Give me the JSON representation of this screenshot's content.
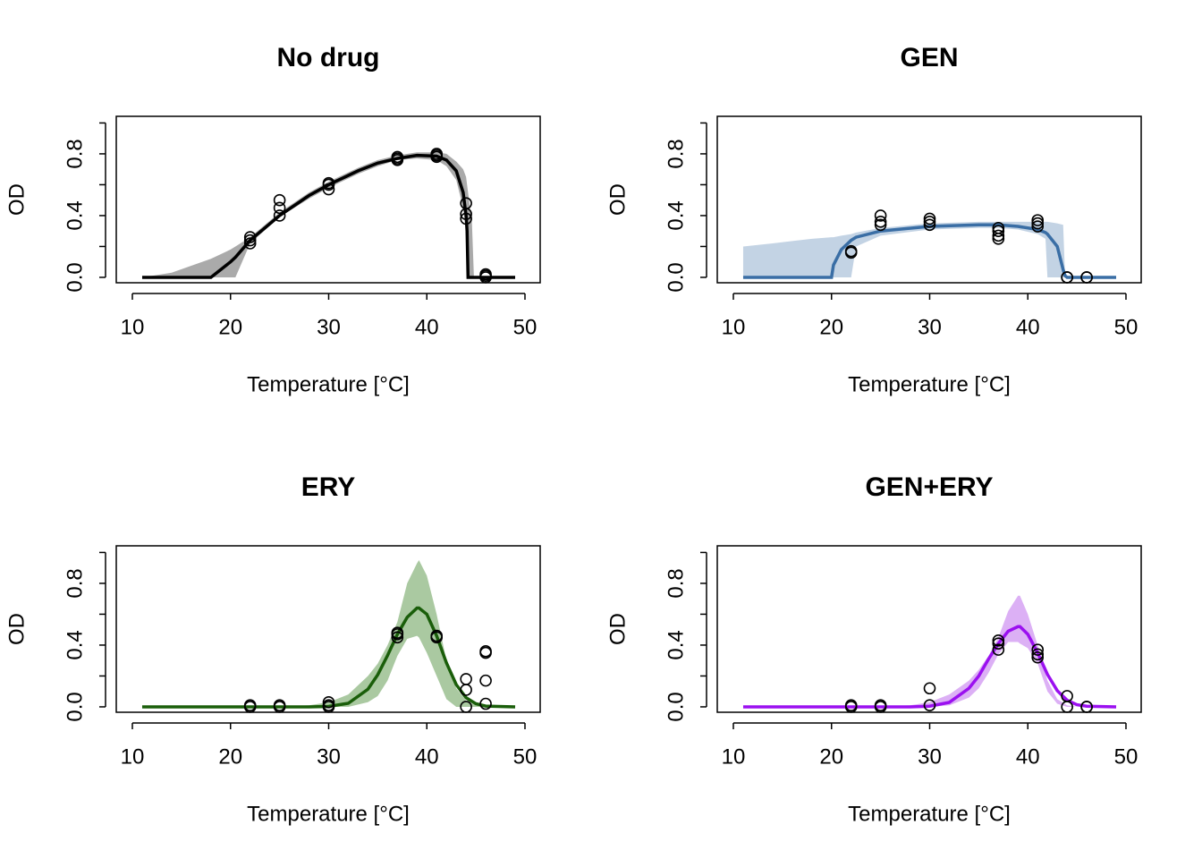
{
  "chart_data": [
    {
      "type": "line",
      "title": "No drug",
      "xlabel": "Temperature [°C]",
      "ylabel": "OD",
      "xlim": [
        8.36,
        51.55
      ],
      "ylim": [
        -0.035,
        1.043
      ],
      "xticks": [
        10,
        20,
        30,
        40,
        50
      ],
      "yticks": [
        {
          "value": 0,
          "label": "0.0"
        },
        {
          "value": 0.4,
          "label": "0.4"
        },
        {
          "value": 0.8,
          "label": "0.8"
        }
      ],
      "yticks_minor": [
        0.2,
        0.6,
        1.0
      ],
      "x": [
        11,
        14,
        18,
        20,
        20.5,
        22,
        25,
        28,
        30,
        33,
        35,
        37,
        39,
        41,
        42,
        43,
        43.7,
        44,
        44.1,
        44.2,
        44.6,
        44.8,
        49
      ],
      "fit": {
        "color": "#000000",
        "values": [
          0,
          0,
          0,
          0.1,
          0.13,
          0.24,
          0.4,
          0.53,
          0.6,
          0.69,
          0.74,
          0.77,
          0.79,
          0.785,
          0.76,
          0.69,
          0.55,
          0.4,
          0.3,
          0,
          0,
          0,
          0
        ]
      },
      "band": {
        "color": "#aaaaaa",
        "lower": [
          0,
          0,
          0,
          0,
          0,
          0.22,
          0.39,
          0.51,
          0.58,
          0.67,
          0.72,
          0.76,
          0.77,
          0.76,
          0.72,
          0.63,
          0.45,
          0.3,
          0.1,
          0,
          0,
          0,
          0
        ],
        "upper": [
          0,
          0.03,
          0.12,
          0.18,
          0.2,
          0.26,
          0.42,
          0.55,
          0.62,
          0.71,
          0.76,
          0.79,
          0.81,
          0.81,
          0.8,
          0.75,
          0.7,
          0.65,
          0.6,
          0.55,
          0.35,
          0,
          0
        ]
      },
      "points": {
        "x": [
          22,
          22,
          22,
          25,
          25,
          25,
          30,
          30,
          30,
          37,
          37,
          37,
          41,
          41,
          41,
          44,
          44,
          44,
          46,
          46,
          46
        ],
        "y": [
          0.22,
          0.24,
          0.26,
          0.4,
          0.45,
          0.5,
          0.57,
          0.6,
          0.61,
          0.76,
          0.77,
          0.78,
          0.78,
          0.79,
          0.8,
          0.38,
          0.41,
          0.48,
          0,
          0.01,
          0.02
        ]
      }
    },
    {
      "type": "line",
      "title": "GEN",
      "xlabel": "Temperature [°C]",
      "ylabel": "OD",
      "xlim": [
        8.36,
        51.55
      ],
      "ylim": [
        -0.035,
        1.043
      ],
      "xticks": [
        10,
        20,
        30,
        40,
        50
      ],
      "yticks": [
        {
          "value": 0,
          "label": "0.0"
        },
        {
          "value": 0.4,
          "label": "0.4"
        },
        {
          "value": 0.8,
          "label": "0.8"
        }
      ],
      "yticks_minor": [
        0.2,
        0.6,
        1.0
      ],
      "x": [
        11,
        14,
        18,
        20,
        20.2,
        21,
        22,
        22.5,
        25,
        30,
        35,
        37,
        39,
        41,
        41.8,
        42,
        43,
        43.6,
        43.8,
        44,
        49
      ],
      "fit": {
        "color": "#3a6ea5",
        "values": [
          0,
          0,
          0,
          0,
          0.08,
          0.18,
          0.24,
          0.26,
          0.3,
          0.33,
          0.34,
          0.34,
          0.33,
          0.31,
          0.29,
          0.28,
          0.2,
          0.05,
          0.01,
          0,
          0
        ]
      },
      "band": {
        "color": "#c3d3e4",
        "lower": [
          0,
          0,
          0,
          0,
          0,
          0,
          0,
          0.2,
          0.27,
          0.31,
          0.32,
          0.32,
          0.31,
          0.28,
          0.25,
          0,
          0,
          0,
          0,
          null,
          null
        ],
        "upper": [
          0.2,
          0.22,
          0.25,
          0.26,
          0.26,
          0.27,
          0.28,
          0.29,
          0.32,
          0.35,
          0.36,
          0.36,
          0.36,
          0.36,
          0.36,
          0.36,
          0.35,
          0.34,
          0,
          null,
          null
        ]
      },
      "points": {
        "x": [
          22,
          22,
          25,
          25,
          25,
          30,
          30,
          30,
          37,
          37,
          37,
          37,
          41,
          41,
          41,
          44,
          44,
          46,
          46
        ],
        "y": [
          0.16,
          0.17,
          0.34,
          0.36,
          0.4,
          0.34,
          0.36,
          0.38,
          0.25,
          0.27,
          0.3,
          0.32,
          0.33,
          0.35,
          0.37,
          0,
          0,
          0,
          0
        ]
      }
    },
    {
      "type": "line",
      "title": "ERY",
      "xlabel": "Temperature [°C]",
      "ylabel": "OD",
      "xlim": [
        8.36,
        51.55
      ],
      "ylim": [
        -0.035,
        1.043
      ],
      "xticks": [
        10,
        20,
        30,
        40,
        50
      ],
      "yticks": [
        {
          "value": 0,
          "label": "0.0"
        },
        {
          "value": 0.4,
          "label": "0.4"
        },
        {
          "value": 0.8,
          "label": "0.8"
        }
      ],
      "yticks_minor": [
        0.2,
        0.6,
        1.0
      ],
      "x": [
        11,
        20,
        25,
        28,
        30,
        32,
        34,
        35,
        36,
        37,
        38,
        39,
        39.2,
        40,
        41,
        42,
        43,
        44,
        45,
        46,
        49
      ],
      "fit": {
        "color": "#1a5e0a",
        "values": [
          0,
          0,
          0,
          0,
          0.003,
          0.023,
          0.114,
          0.208,
          0.333,
          0.47,
          0.58,
          0.64,
          0.64,
          0.6,
          0.46,
          0.285,
          0.144,
          0.059,
          0.02,
          0.005,
          0
        ]
      },
      "band": {
        "color": "#aac9a1",
        "lower": [
          0,
          0,
          0,
          0,
          0,
          0,
          0.03,
          0.07,
          0.17,
          0.33,
          0.44,
          0.46,
          0.45,
          0.35,
          0.2,
          0.05,
          0,
          0,
          0,
          0,
          0
        ],
        "upper": [
          0,
          0,
          0,
          0.01,
          0.03,
          0.08,
          0.2,
          0.28,
          0.4,
          0.55,
          0.8,
          0.93,
          0.95,
          0.85,
          0.6,
          0.3,
          0.12,
          0.04,
          0.01,
          0,
          0
        ]
      },
      "points": {
        "x": [
          22,
          22,
          25,
          25,
          30,
          30,
          30,
          37,
          37,
          37,
          41,
          41,
          44,
          44,
          44,
          46,
          46,
          46,
          46
        ],
        "y": [
          0,
          0.01,
          0,
          0.01,
          0,
          0.01,
          0.03,
          0.45,
          0.47,
          0.48,
          0.45,
          0.46,
          0,
          0.11,
          0.18,
          0.02,
          0.17,
          0.35,
          0.36
        ]
      }
    },
    {
      "type": "line",
      "title": "GEN+ERY",
      "xlabel": "Temperature [°C]",
      "ylabel": "OD",
      "xlim": [
        8.36,
        51.55
      ],
      "ylim": [
        -0.035,
        1.043
      ],
      "xticks": [
        10,
        20,
        30,
        40,
        50
      ],
      "yticks": [
        {
          "value": 0,
          "label": "0.0"
        },
        {
          "value": 0.4,
          "label": "0.4"
        },
        {
          "value": 0.8,
          "label": "0.8"
        }
      ],
      "yticks_minor": [
        0.2,
        0.6,
        1.0
      ],
      "x": [
        11,
        20,
        25,
        28,
        30,
        32,
        34,
        35,
        36,
        37,
        38,
        39,
        39.2,
        40,
        41,
        42,
        43,
        44,
        45,
        46,
        49
      ],
      "fit": {
        "color": "#9b10f0",
        "values": [
          0,
          0,
          0,
          0,
          0.004,
          0.029,
          0.12,
          0.2,
          0.31,
          0.41,
          0.49,
          0.52,
          0.52,
          0.47,
          0.35,
          0.21,
          0.105,
          0.043,
          0.014,
          0.004,
          0
        ]
      },
      "band": {
        "color": "#dcb0f5",
        "lower": [
          0,
          0,
          0,
          0,
          0,
          0.01,
          0.06,
          0.12,
          0.22,
          0.34,
          0.42,
          0.42,
          0.41,
          0.38,
          0.28,
          0.1,
          0.02,
          0,
          0,
          0,
          0
        ],
        "upper": [
          0,
          0,
          0,
          0.01,
          0.03,
          0.08,
          0.17,
          0.24,
          0.33,
          0.45,
          0.62,
          0.72,
          0.72,
          0.6,
          0.4,
          0.17,
          0.05,
          0.01,
          0,
          0,
          0
        ]
      },
      "points": {
        "x": [
          22,
          22,
          25,
          25,
          30,
          30,
          37,
          37,
          37,
          41,
          41,
          41,
          44,
          44,
          46,
          46
        ],
        "y": [
          0,
          0.01,
          0,
          0.01,
          0.01,
          0.12,
          0.37,
          0.41,
          0.43,
          0.32,
          0.34,
          0.37,
          0,
          0.07,
          0,
          0
        ]
      }
    }
  ]
}
